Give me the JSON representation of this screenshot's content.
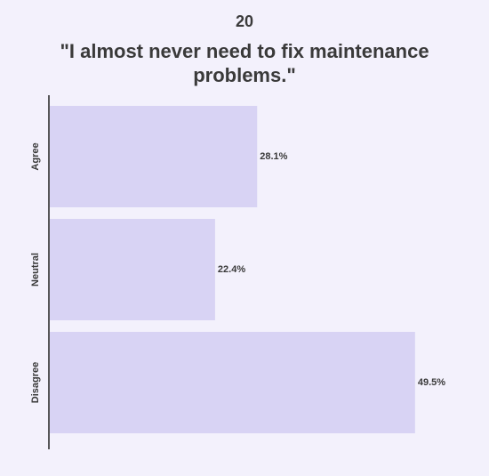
{
  "header": {
    "number": "20",
    "title": "\"I almost never need to fix maintenance problems.\""
  },
  "colors": {
    "background": "#f3f1fc",
    "bar": "#d8d3f4",
    "axis": "#222222",
    "text": "#3a3a3a"
  },
  "chart_data": {
    "type": "bar",
    "orientation": "horizontal",
    "categories": [
      "Agree",
      "Neutral",
      "Disagree"
    ],
    "values": [
      28.1,
      22.4,
      49.5
    ],
    "value_labels": [
      "28.1%",
      "22.4%",
      "49.5%"
    ],
    "unit": "%",
    "xlim": [
      0,
      50
    ],
    "grid": false,
    "legend": "none"
  }
}
